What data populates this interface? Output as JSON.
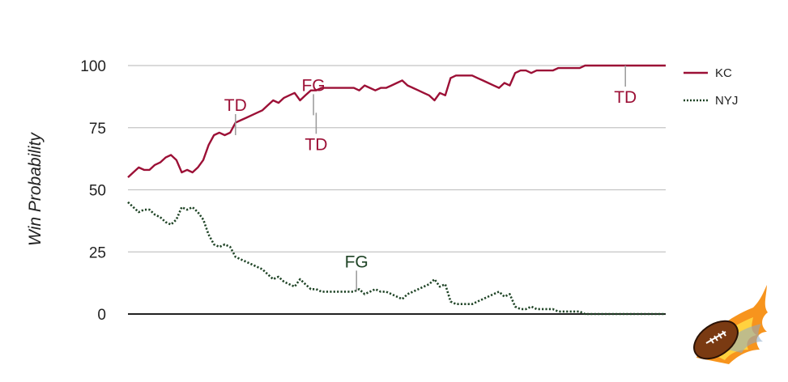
{
  "chart_data": {
    "type": "line",
    "title": "",
    "xlabel": "",
    "ylabel": "Win Probability",
    "ylim": [
      0,
      100
    ],
    "xlim": [
      0,
      100
    ],
    "yticks": [
      "0",
      "25",
      "50",
      "75",
      "100"
    ],
    "grid": true,
    "legend_position": "right",
    "series": [
      {
        "name": "KC",
        "color": "#9c1036",
        "style": "solid",
        "x": [
          0,
          1,
          2,
          3,
          4,
          5,
          6,
          7,
          8,
          9,
          10,
          11,
          12,
          13,
          14,
          15,
          16,
          17,
          18,
          19,
          20,
          21,
          22,
          23,
          24,
          25,
          26,
          27,
          28,
          29,
          30,
          31,
          32,
          33,
          34,
          35,
          36,
          37,
          38,
          39,
          40,
          41,
          42,
          43,
          44,
          45,
          46,
          47,
          48,
          49,
          50,
          51,
          52,
          53,
          54,
          55,
          56,
          57,
          58,
          59,
          60,
          61,
          62,
          63,
          64,
          65,
          66,
          67,
          68,
          69,
          70,
          71,
          72,
          73,
          74,
          75,
          76,
          77,
          78,
          79,
          80,
          81,
          82,
          83,
          84,
          85,
          86,
          87,
          88,
          89,
          90,
          91,
          92,
          93,
          94,
          95,
          96,
          97,
          98,
          99,
          100
        ],
        "y": [
          55,
          57,
          59,
          58,
          58,
          60,
          61,
          63,
          64,
          62,
          57,
          58,
          57,
          59,
          62,
          68,
          72,
          73,
          72,
          73,
          77,
          78,
          79,
          80,
          81,
          82,
          84,
          86,
          85,
          87,
          88,
          89,
          86,
          88,
          90,
          90,
          91,
          91,
          91,
          91,
          91,
          91,
          91,
          90,
          92,
          91,
          90,
          91,
          91,
          92,
          93,
          94,
          92,
          91,
          90,
          89,
          88,
          86,
          89,
          88,
          95,
          96,
          96,
          96,
          96,
          95,
          94,
          93,
          92,
          91,
          93,
          92,
          97,
          98,
          98,
          97,
          98,
          98,
          98,
          98,
          99,
          99,
          99,
          99,
          99,
          100,
          100,
          100,
          100,
          100,
          100,
          100,
          100,
          100,
          100,
          100,
          100,
          100,
          100,
          100,
          100
        ]
      },
      {
        "name": "NYJ",
        "color": "#1f4426",
        "style": "dotted",
        "x": [
          0,
          1,
          2,
          3,
          4,
          5,
          6,
          7,
          8,
          9,
          10,
          11,
          12,
          13,
          14,
          15,
          16,
          17,
          18,
          19,
          20,
          21,
          22,
          23,
          24,
          25,
          26,
          27,
          28,
          29,
          30,
          31,
          32,
          33,
          34,
          35,
          36,
          37,
          38,
          39,
          40,
          41,
          42,
          43,
          44,
          45,
          46,
          47,
          48,
          49,
          50,
          51,
          52,
          53,
          54,
          55,
          56,
          57,
          58,
          59,
          60,
          61,
          62,
          63,
          64,
          65,
          66,
          67,
          68,
          69,
          70,
          71,
          72,
          73,
          74,
          75,
          76,
          77,
          78,
          79,
          80,
          81,
          82,
          83,
          84,
          85,
          86,
          87,
          88,
          89,
          90,
          91,
          92,
          93,
          94,
          95,
          96,
          97,
          98,
          99,
          100
        ],
        "y": [
          45,
          43,
          41,
          42,
          42,
          40,
          39,
          37,
          36,
          38,
          43,
          42,
          43,
          41,
          38,
          32,
          28,
          27,
          28,
          27,
          23,
          22,
          21,
          20,
          19,
          18,
          16,
          14,
          15,
          13,
          12,
          11,
          14,
          12,
          10,
          10,
          9,
          9,
          9,
          9,
          9,
          9,
          9,
          10,
          8,
          9,
          10,
          9,
          9,
          8,
          7,
          6,
          8,
          9,
          10,
          11,
          12,
          14,
          11,
          12,
          5,
          4,
          4,
          4,
          4,
          5,
          6,
          7,
          8,
          9,
          7,
          8,
          3,
          2,
          2,
          3,
          2,
          2,
          2,
          2,
          1,
          1,
          1,
          1,
          1,
          0,
          0,
          0,
          0,
          0,
          0,
          0,
          0,
          0,
          0,
          0,
          0,
          0,
          0,
          0,
          0
        ]
      }
    ],
    "annotations": [
      {
        "text": "TD",
        "series": "KC",
        "x": 20,
        "y": 72,
        "position": "above"
      },
      {
        "text": "FG",
        "series": "KC",
        "x": 34.5,
        "y": 80,
        "position": "above"
      },
      {
        "text": "TD",
        "series": "KC",
        "x": 35,
        "y": 81,
        "position": "below"
      },
      {
        "text": "TD",
        "series": "KC",
        "x": 92.5,
        "y": 100,
        "position": "below"
      },
      {
        "text": "FG",
        "series": "NYJ",
        "x": 42.5,
        "y": 9,
        "position": "above"
      }
    ]
  }
}
